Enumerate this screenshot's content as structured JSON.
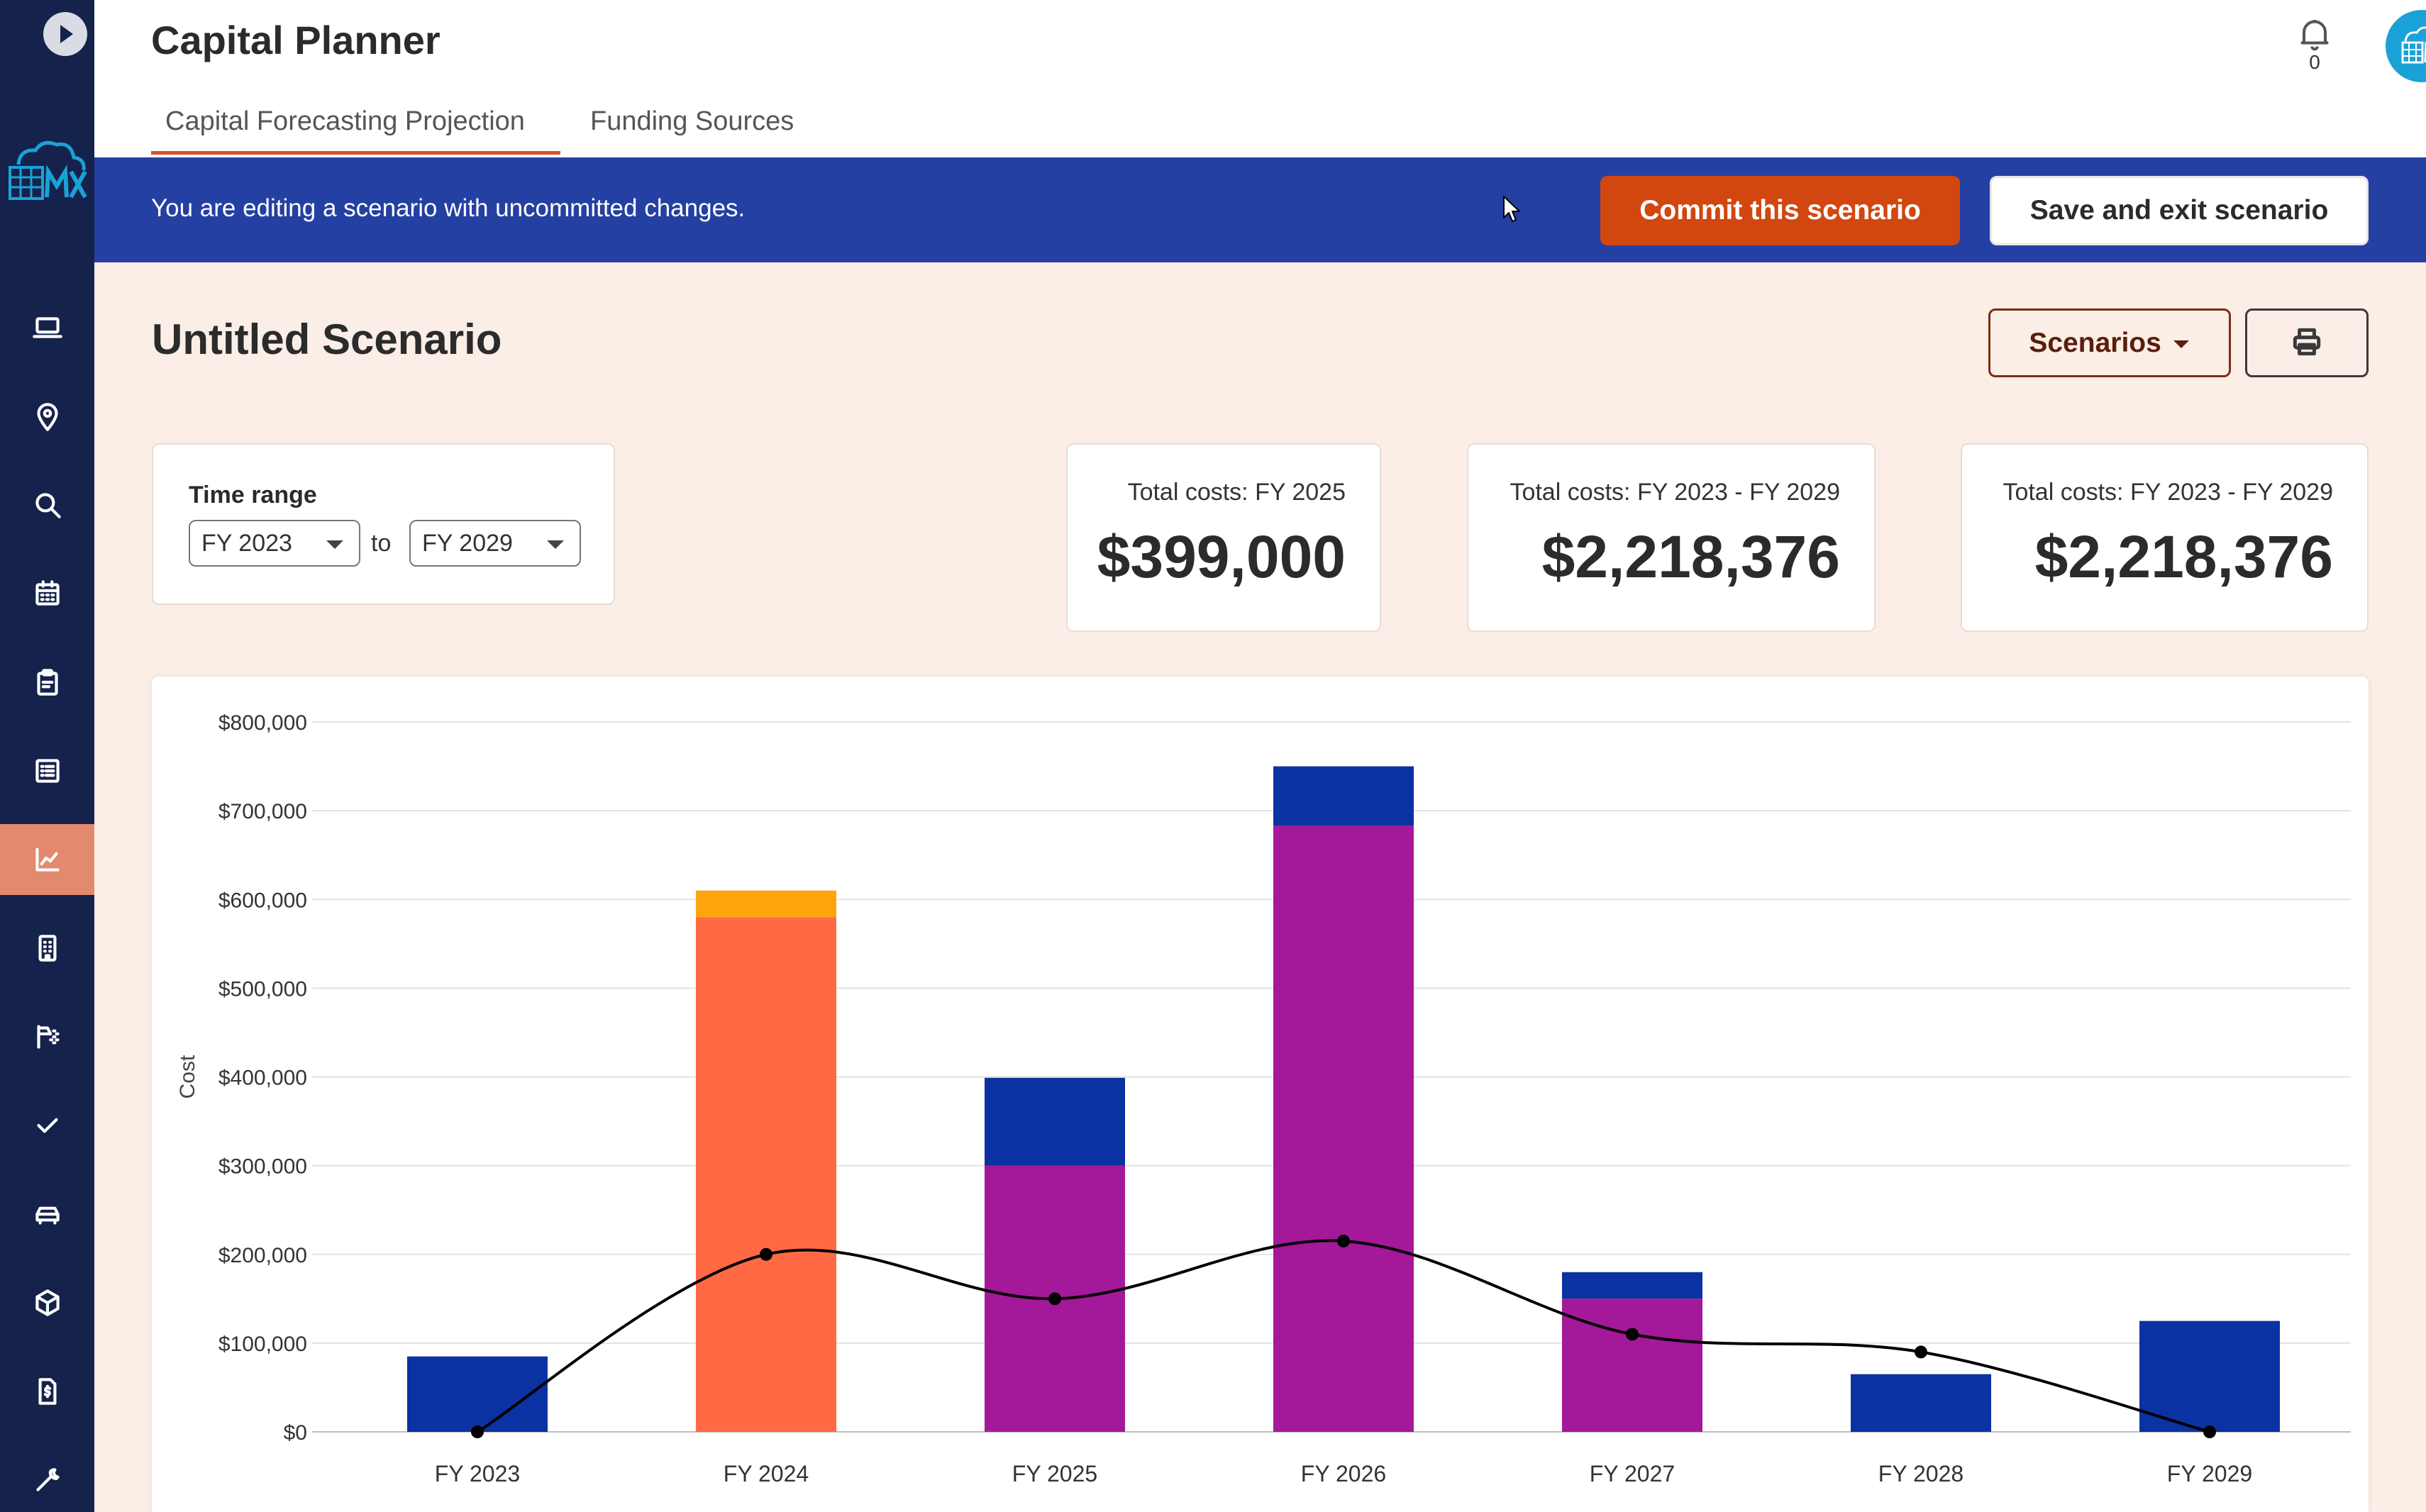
{
  "app": {
    "title": "Capital Planner"
  },
  "tabs": [
    {
      "label": "Capital Forecasting Projection",
      "active": true
    },
    {
      "label": "Funding Sources",
      "active": false
    }
  ],
  "notifications": {
    "count": "0",
    "icon": "bell-icon"
  },
  "banner": {
    "text": "You are editing a scenario with uncommitted changes.",
    "commit_label": "Commit this scenario",
    "save_label": "Save and exit scenario"
  },
  "scenario": {
    "title": "Untitled Scenario",
    "scenarios_label": "Scenarios",
    "print_icon": "printer-icon"
  },
  "time_range": {
    "label": "Time range",
    "from": "FY 2023",
    "to_label": "to",
    "to": "FY 2029"
  },
  "stats": [
    {
      "label": "Total costs: FY 2025",
      "value": "$399,000"
    },
    {
      "label": "Total costs: FY 2023 - FY 2029",
      "value": "$2,218,376"
    },
    {
      "label": "Total costs: FY 2023 - FY 2029",
      "value": "$2,218,376"
    }
  ],
  "sidebar": {
    "items": [
      {
        "name": "laptop",
        "icon": "laptop-icon"
      },
      {
        "name": "location",
        "icon": "map-pin-icon"
      },
      {
        "name": "search",
        "icon": "search-icon"
      },
      {
        "name": "calendar",
        "icon": "calendar-icon"
      },
      {
        "name": "clipboard",
        "icon": "clipboard-icon"
      },
      {
        "name": "list",
        "icon": "list-icon"
      },
      {
        "name": "chart",
        "icon": "trending-chart-icon",
        "active": true
      },
      {
        "name": "building",
        "icon": "building-icon"
      },
      {
        "name": "cleaning",
        "icon": "spray-icon"
      },
      {
        "name": "check",
        "icon": "check-icon"
      },
      {
        "name": "vehicle",
        "icon": "car-icon"
      },
      {
        "name": "package",
        "icon": "box-icon"
      },
      {
        "name": "invoice",
        "icon": "invoice-icon"
      },
      {
        "name": "tools",
        "icon": "wrench-icon"
      }
    ]
  },
  "colors": {
    "sidebar": "#15224b",
    "active_nav": "#e3896e",
    "banner": "#2540a3",
    "commit": "#d2460f",
    "series_blue": "#0b32a2",
    "series_orange": "#ff6a44",
    "series_yellow": "#ffa40d",
    "series_purple": "#a4189a"
  },
  "chart_data": {
    "type": "bar",
    "stacked": true,
    "ylabel": "Cost",
    "ylim": [
      0,
      800000
    ],
    "yticks": [
      "$0",
      "$100,000",
      "$200,000",
      "$300,000",
      "$400,000",
      "$500,000",
      "$600,000",
      "$700,000",
      "$800,000"
    ],
    "categories": [
      "FY 2023",
      "FY 2024",
      "FY 2025",
      "FY 2026",
      "FY 2027",
      "FY 2028",
      "FY 2029"
    ],
    "grid": true,
    "series": [
      {
        "color": "#ff6a44",
        "values": [
          0,
          580000,
          0,
          0,
          0,
          0,
          0
        ]
      },
      {
        "color": "#ffa40d",
        "values": [
          0,
          30000,
          0,
          0,
          0,
          0,
          0
        ]
      },
      {
        "color": "#a4189a",
        "values": [
          0,
          0,
          300000,
          683000,
          150000,
          0,
          0
        ]
      },
      {
        "color": "#0b32a2",
        "values": [
          85000,
          0,
          99000,
          67000,
          30000,
          65000,
          125000
        ]
      }
    ],
    "line": {
      "color": "#000000",
      "values": [
        0,
        200000,
        150000,
        215000,
        110000,
        90000,
        0
      ]
    }
  }
}
